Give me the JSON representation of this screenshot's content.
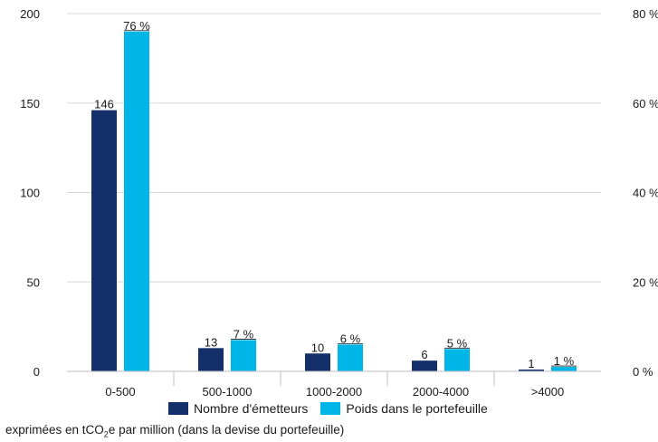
{
  "chart_data": {
    "type": "bar",
    "categories": [
      "0-500",
      "500-1000",
      "1000-2000",
      "2000-4000",
      ">4000"
    ],
    "series": [
      {
        "name": "Nombre d'émetteurs",
        "axis": "left",
        "color": "#14306b",
        "values": [
          146,
          13,
          10,
          6,
          1
        ],
        "labels": [
          "146",
          "13",
          "10",
          "6",
          "1"
        ]
      },
      {
        "name": "Poids dans le portefeuille",
        "axis": "right",
        "color": "#00b5e8",
        "values": [
          76,
          7,
          6,
          5,
          1
        ],
        "labels": [
          "76 %",
          "7 %",
          "6 %",
          "5 %",
          "1 %"
        ]
      }
    ],
    "ylim_left": [
      0,
      200
    ],
    "ylim_right": [
      0,
      80
    ],
    "yticks_left": [
      "0",
      "50",
      "100",
      "150",
      "200"
    ],
    "yticks_right": [
      "0 %",
      "20 %",
      "40 %",
      "60 %",
      "80 %"
    ],
    "grid": true,
    "legend_position": "bottom"
  },
  "footnote": {
    "prefix": "exprimées en tCO",
    "subscript": "2",
    "suffix": "e par million (dans la devise du portefeuille)"
  }
}
